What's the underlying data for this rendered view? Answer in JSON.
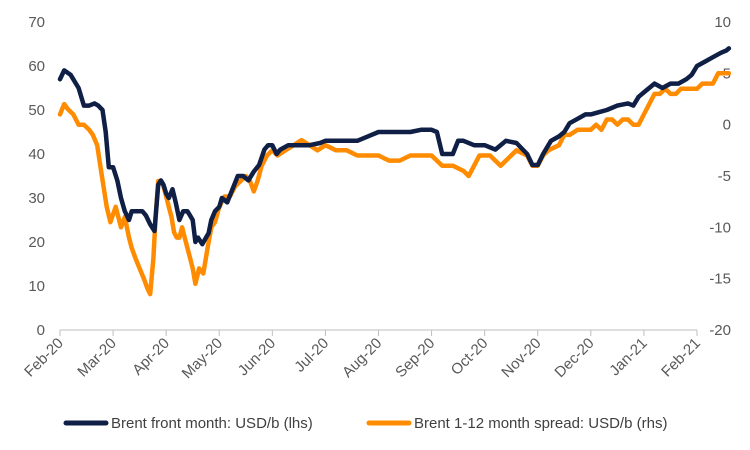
{
  "chart_data": {
    "type": "line",
    "x_ticks": [
      "Feb-20",
      "Mar-20",
      "Apr-20",
      "May-20",
      "Jun-20",
      "Jul-20",
      "Aug-20",
      "Sep-20",
      "Oct-20",
      "Nov-20",
      "Dec-20",
      "Jan-21",
      "Feb-21"
    ],
    "y_left": {
      "ylim": [
        0,
        70
      ],
      "ticks": [
        "0",
        "10",
        "20",
        "30",
        "40",
        "50",
        "60",
        "70"
      ]
    },
    "y_right": {
      "ylim": [
        -20,
        10
      ],
      "ticks": [
        "-20",
        "-15",
        "-10",
        "-5",
        "0",
        "5",
        "10"
      ]
    },
    "grid": false,
    "legend_position": "bottom",
    "series": [
      {
        "name": "Brent front month: USD/b (lhs)",
        "axis": "left",
        "color": "#0f1f45",
        "points": [
          [
            0.0,
            57
          ],
          [
            0.08,
            59
          ],
          [
            0.2,
            58
          ],
          [
            0.35,
            55
          ],
          [
            0.45,
            51
          ],
          [
            0.55,
            51
          ],
          [
            0.65,
            51.5
          ],
          [
            0.72,
            51
          ],
          [
            0.8,
            50
          ],
          [
            0.86,
            45
          ],
          [
            0.92,
            37
          ],
          [
            1.0,
            37
          ],
          [
            1.08,
            34
          ],
          [
            1.15,
            30
          ],
          [
            1.22,
            27
          ],
          [
            1.3,
            25
          ],
          [
            1.35,
            27
          ],
          [
            1.45,
            27
          ],
          [
            1.55,
            27
          ],
          [
            1.62,
            26
          ],
          [
            1.7,
            24
          ],
          [
            1.78,
            22.5
          ],
          [
            1.85,
            33
          ],
          [
            1.9,
            34
          ],
          [
            1.95,
            33
          ],
          [
            2.0,
            31
          ],
          [
            2.05,
            30
          ],
          [
            2.12,
            32
          ],
          [
            2.18,
            29
          ],
          [
            2.25,
            25
          ],
          [
            2.32,
            27
          ],
          [
            2.4,
            27
          ],
          [
            2.45,
            26
          ],
          [
            2.5,
            25
          ],
          [
            2.55,
            20
          ],
          [
            2.6,
            21
          ],
          [
            2.68,
            19.5
          ],
          [
            2.75,
            21
          ],
          [
            2.8,
            22
          ],
          [
            2.85,
            25
          ],
          [
            2.92,
            27
          ],
          [
            3.0,
            28
          ],
          [
            3.05,
            30
          ],
          [
            3.15,
            29
          ],
          [
            3.25,
            32
          ],
          [
            3.35,
            35
          ],
          [
            3.45,
            35
          ],
          [
            3.55,
            34
          ],
          [
            3.65,
            36
          ],
          [
            3.75,
            37.5
          ],
          [
            3.85,
            41
          ],
          [
            3.92,
            42
          ],
          [
            4.0,
            42
          ],
          [
            4.08,
            40
          ],
          [
            4.15,
            41
          ],
          [
            4.3,
            42
          ],
          [
            4.5,
            42
          ],
          [
            4.7,
            42
          ],
          [
            4.9,
            42.5
          ],
          [
            5.0,
            43
          ],
          [
            5.2,
            43
          ],
          [
            5.4,
            43
          ],
          [
            5.6,
            43
          ],
          [
            5.8,
            44
          ],
          [
            6.0,
            45
          ],
          [
            6.2,
            45
          ],
          [
            6.4,
            45
          ],
          [
            6.6,
            45
          ],
          [
            6.8,
            45.5
          ],
          [
            7.0,
            45.5
          ],
          [
            7.1,
            45
          ],
          [
            7.2,
            40
          ],
          [
            7.3,
            40
          ],
          [
            7.4,
            40
          ],
          [
            7.5,
            43
          ],
          [
            7.6,
            43
          ],
          [
            7.8,
            42
          ],
          [
            8.0,
            42
          ],
          [
            8.2,
            41
          ],
          [
            8.4,
            43
          ],
          [
            8.6,
            42.5
          ],
          [
            8.8,
            40
          ],
          [
            8.9,
            37.5
          ],
          [
            9.0,
            37.5
          ],
          [
            9.1,
            40
          ],
          [
            9.25,
            43
          ],
          [
            9.4,
            44
          ],
          [
            9.5,
            45
          ],
          [
            9.6,
            47
          ],
          [
            9.75,
            48
          ],
          [
            9.9,
            49
          ],
          [
            10.0,
            49
          ],
          [
            10.15,
            49.5
          ],
          [
            10.3,
            50
          ],
          [
            10.5,
            51
          ],
          [
            10.7,
            51.5
          ],
          [
            10.8,
            51
          ],
          [
            10.9,
            53
          ],
          [
            11.0,
            54
          ],
          [
            11.1,
            55
          ],
          [
            11.2,
            56
          ],
          [
            11.35,
            55
          ],
          [
            11.5,
            56
          ],
          [
            11.65,
            56
          ],
          [
            11.8,
            57
          ],
          [
            11.9,
            58
          ],
          [
            12.0,
            60
          ],
          [
            12.15,
            61
          ],
          [
            12.3,
            62
          ],
          [
            12.45,
            63
          ],
          [
            12.55,
            63.5
          ],
          [
            12.6,
            64
          ]
        ]
      },
      {
        "name": "Brent 1-12 month spread: USD/b (rhs)",
        "axis": "right",
        "color": "#ff8c00",
        "points": [
          [
            0.0,
            1
          ],
          [
            0.08,
            2
          ],
          [
            0.15,
            1.5
          ],
          [
            0.25,
            1
          ],
          [
            0.35,
            0
          ],
          [
            0.45,
            0
          ],
          [
            0.55,
            -0.5
          ],
          [
            0.62,
            -1
          ],
          [
            0.7,
            -2
          ],
          [
            0.76,
            -4
          ],
          [
            0.82,
            -6
          ],
          [
            0.88,
            -8
          ],
          [
            0.95,
            -9.5
          ],
          [
            1.05,
            -8
          ],
          [
            1.15,
            -10
          ],
          [
            1.22,
            -9
          ],
          [
            1.3,
            -11
          ],
          [
            1.35,
            -12
          ],
          [
            1.42,
            -13
          ],
          [
            1.5,
            -14
          ],
          [
            1.58,
            -15
          ],
          [
            1.65,
            -16
          ],
          [
            1.7,
            -16.5
          ],
          [
            1.76,
            -13
          ],
          [
            1.8,
            -9
          ],
          [
            1.85,
            -5.5
          ],
          [
            1.9,
            -5.5
          ],
          [
            1.95,
            -6
          ],
          [
            2.0,
            -7
          ],
          [
            2.05,
            -8
          ],
          [
            2.1,
            -9
          ],
          [
            2.15,
            -10.5
          ],
          [
            2.2,
            -11
          ],
          [
            2.25,
            -11
          ],
          [
            2.3,
            -10
          ],
          [
            2.35,
            -11
          ],
          [
            2.4,
            -12
          ],
          [
            2.45,
            -13
          ],
          [
            2.5,
            -14
          ],
          [
            2.55,
            -15.5
          ],
          [
            2.62,
            -14
          ],
          [
            2.7,
            -14.5
          ],
          [
            2.78,
            -12
          ],
          [
            2.85,
            -10
          ],
          [
            2.92,
            -9.5
          ],
          [
            3.0,
            -8
          ],
          [
            3.1,
            -7
          ],
          [
            3.2,
            -7
          ],
          [
            3.3,
            -6
          ],
          [
            3.4,
            -5.5
          ],
          [
            3.5,
            -5
          ],
          [
            3.58,
            -5.5
          ],
          [
            3.65,
            -6.5
          ],
          [
            3.72,
            -5.5
          ],
          [
            3.8,
            -4
          ],
          [
            3.9,
            -3
          ],
          [
            4.0,
            -2.5
          ],
          [
            4.1,
            -3
          ],
          [
            4.25,
            -2.5
          ],
          [
            4.4,
            -2
          ],
          [
            4.55,
            -1.5
          ],
          [
            4.7,
            -2
          ],
          [
            4.85,
            -2.5
          ],
          [
            5.0,
            -2
          ],
          [
            5.2,
            -2.5
          ],
          [
            5.4,
            -2.5
          ],
          [
            5.6,
            -3
          ],
          [
            5.8,
            -3
          ],
          [
            6.0,
            -3
          ],
          [
            6.2,
            -3.5
          ],
          [
            6.4,
            -3.5
          ],
          [
            6.6,
            -3
          ],
          [
            6.8,
            -3
          ],
          [
            7.0,
            -3
          ],
          [
            7.1,
            -3.5
          ],
          [
            7.2,
            -4
          ],
          [
            7.4,
            -4
          ],
          [
            7.6,
            -4.5
          ],
          [
            7.7,
            -5
          ],
          [
            7.8,
            -4
          ],
          [
            7.9,
            -3
          ],
          [
            8.0,
            -3
          ],
          [
            8.1,
            -3
          ],
          [
            8.2,
            -3.5
          ],
          [
            8.3,
            -4
          ],
          [
            8.4,
            -3.5
          ],
          [
            8.6,
            -2.5
          ],
          [
            8.8,
            -3
          ],
          [
            8.9,
            -4
          ],
          [
            9.0,
            -4
          ],
          [
            9.1,
            -3
          ],
          [
            9.2,
            -2.5
          ],
          [
            9.4,
            -2
          ],
          [
            9.5,
            -1
          ],
          [
            9.6,
            -1
          ],
          [
            9.75,
            -0.5
          ],
          [
            9.9,
            -0.5
          ],
          [
            10.0,
            -0.5
          ],
          [
            10.1,
            0
          ],
          [
            10.2,
            -0.5
          ],
          [
            10.3,
            0.5
          ],
          [
            10.4,
            0.5
          ],
          [
            10.5,
            0
          ],
          [
            10.6,
            0.5
          ],
          [
            10.7,
            0.5
          ],
          [
            10.8,
            0
          ],
          [
            10.9,
            0
          ],
          [
            11.0,
            1
          ],
          [
            11.1,
            2
          ],
          [
            11.2,
            3
          ],
          [
            11.3,
            3
          ],
          [
            11.4,
            3.5
          ],
          [
            11.5,
            3
          ],
          [
            11.6,
            3
          ],
          [
            11.7,
            3.5
          ],
          [
            11.8,
            3.5
          ],
          [
            11.9,
            3.5
          ],
          [
            12.0,
            3.5
          ],
          [
            12.1,
            4
          ],
          [
            12.2,
            4
          ],
          [
            12.3,
            4
          ],
          [
            12.4,
            5
          ],
          [
            12.5,
            5
          ],
          [
            12.6,
            5
          ]
        ]
      }
    ]
  }
}
